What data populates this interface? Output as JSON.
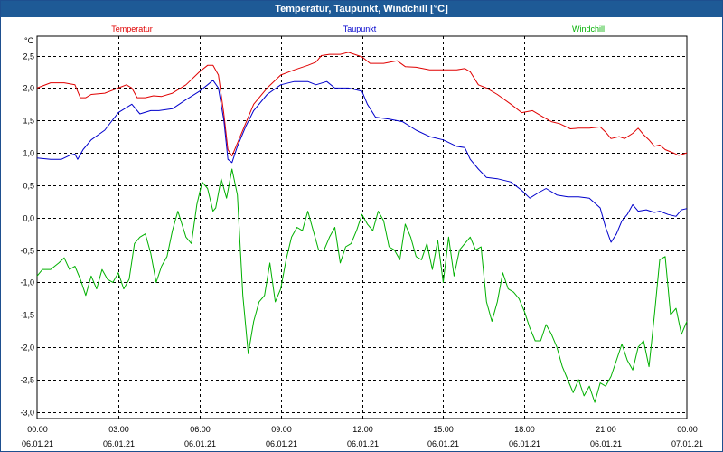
{
  "window": {
    "title": "Temperatur, Taupunkt, Windchill [°C]"
  },
  "chart_data": {
    "type": "line",
    "title": "Temperatur, Taupunkt, Windchill [°C]",
    "ylabel": "°C",
    "xlabel": "",
    "ylim": [
      -3.1,
      2.8
    ],
    "xlim": [
      0,
      24
    ],
    "grid": true,
    "legend_position": "top",
    "y_ticks": [
      "2,5",
      "2,0",
      "1,5",
      "1,0",
      "0,5",
      "0,0",
      "-0,5",
      "-1,0",
      "-1,5",
      "-2,0",
      "-2,5",
      "-3,0"
    ],
    "y_tick_values": [
      2.5,
      2.0,
      1.5,
      1.0,
      0.5,
      0.0,
      -0.5,
      -1.0,
      -1.5,
      -2.0,
      -2.5,
      -3.0
    ],
    "x_ticks": [
      {
        "time": "00:00",
        "date": "06.01.21",
        "hour": 0
      },
      {
        "time": "03:00",
        "date": "06.01.21",
        "hour": 3
      },
      {
        "time": "06:00",
        "date": "06.01.21",
        "hour": 6
      },
      {
        "time": "09:00",
        "date": "06.01.21",
        "hour": 9
      },
      {
        "time": "12:00",
        "date": "06.01.21",
        "hour": 12
      },
      {
        "time": "15:00",
        "date": "06.01.21",
        "hour": 15
      },
      {
        "time": "18:00",
        "date": "06.01.21",
        "hour": 18
      },
      {
        "time": "21:00",
        "date": "06.01.21",
        "hour": 21
      },
      {
        "time": "00:00",
        "date": "07.01.21",
        "hour": 24
      }
    ],
    "series": [
      {
        "name": "Temperatur",
        "color": "#e00000",
        "points": [
          [
            0,
            2.0
          ],
          [
            0.5,
            2.08
          ],
          [
            1.0,
            2.08
          ],
          [
            1.4,
            2.05
          ],
          [
            1.6,
            1.85
          ],
          [
            1.8,
            1.85
          ],
          [
            2.0,
            1.9
          ],
          [
            2.5,
            1.92
          ],
          [
            3.0,
            2.0
          ],
          [
            3.3,
            2.05
          ],
          [
            3.5,
            2.0
          ],
          [
            3.7,
            1.85
          ],
          [
            4.0,
            1.85
          ],
          [
            4.3,
            1.88
          ],
          [
            4.6,
            1.87
          ],
          [
            5.0,
            1.92
          ],
          [
            5.5,
            2.05
          ],
          [
            6.0,
            2.25
          ],
          [
            6.3,
            2.35
          ],
          [
            6.5,
            2.35
          ],
          [
            6.7,
            2.2
          ],
          [
            6.9,
            1.6
          ],
          [
            7.05,
            1.05
          ],
          [
            7.2,
            0.95
          ],
          [
            7.4,
            1.15
          ],
          [
            7.7,
            1.45
          ],
          [
            8.0,
            1.75
          ],
          [
            8.5,
            2.0
          ],
          [
            9.0,
            2.2
          ],
          [
            9.5,
            2.28
          ],
          [
            10.0,
            2.35
          ],
          [
            10.3,
            2.4
          ],
          [
            10.5,
            2.5
          ],
          [
            10.8,
            2.52
          ],
          [
            11.2,
            2.52
          ],
          [
            11.5,
            2.55
          ],
          [
            12.0,
            2.48
          ],
          [
            12.3,
            2.38
          ],
          [
            12.8,
            2.38
          ],
          [
            13.3,
            2.42
          ],
          [
            13.6,
            2.33
          ],
          [
            14.0,
            2.32
          ],
          [
            14.5,
            2.28
          ],
          [
            15.0,
            2.28
          ],
          [
            15.5,
            2.28
          ],
          [
            15.8,
            2.3
          ],
          [
            16.0,
            2.25
          ],
          [
            16.3,
            2.05
          ],
          [
            16.6,
            2.0
          ],
          [
            17.0,
            1.9
          ],
          [
            17.5,
            1.75
          ],
          [
            17.9,
            1.62
          ],
          [
            18.3,
            1.65
          ],
          [
            18.7,
            1.55
          ],
          [
            19.0,
            1.48
          ],
          [
            19.3,
            1.45
          ],
          [
            19.7,
            1.37
          ],
          [
            20.0,
            1.38
          ],
          [
            20.4,
            1.38
          ],
          [
            20.8,
            1.4
          ],
          [
            21.0,
            1.32
          ],
          [
            21.2,
            1.22
          ],
          [
            21.5,
            1.25
          ],
          [
            21.7,
            1.22
          ],
          [
            22.0,
            1.3
          ],
          [
            22.2,
            1.38
          ],
          [
            22.4,
            1.28
          ],
          [
            22.6,
            1.2
          ],
          [
            22.8,
            1.1
          ],
          [
            23.0,
            1.12
          ],
          [
            23.2,
            1.05
          ],
          [
            23.5,
            1.0
          ],
          [
            23.7,
            0.96
          ],
          [
            24.0,
            1.0
          ]
        ]
      },
      {
        "name": "Taupunkt",
        "color": "#0000cc",
        "points": [
          [
            0,
            0.92
          ],
          [
            0.5,
            0.9
          ],
          [
            0.9,
            0.9
          ],
          [
            1.2,
            0.96
          ],
          [
            1.4,
            0.98
          ],
          [
            1.5,
            0.9
          ],
          [
            1.7,
            1.05
          ],
          [
            2.0,
            1.2
          ],
          [
            2.5,
            1.35
          ],
          [
            3.0,
            1.62
          ],
          [
            3.5,
            1.75
          ],
          [
            3.8,
            1.6
          ],
          [
            4.2,
            1.65
          ],
          [
            4.5,
            1.65
          ],
          [
            5.0,
            1.68
          ],
          [
            5.5,
            1.82
          ],
          [
            6.0,
            1.95
          ],
          [
            6.3,
            2.05
          ],
          [
            6.5,
            2.12
          ],
          [
            6.7,
            2.0
          ],
          [
            6.9,
            1.5
          ],
          [
            7.05,
            0.9
          ],
          [
            7.2,
            0.85
          ],
          [
            7.4,
            1.1
          ],
          [
            7.7,
            1.4
          ],
          [
            8.0,
            1.65
          ],
          [
            8.5,
            1.9
          ],
          [
            9.0,
            2.05
          ],
          [
            9.5,
            2.1
          ],
          [
            10.0,
            2.1
          ],
          [
            10.3,
            2.05
          ],
          [
            10.7,
            2.1
          ],
          [
            11.0,
            2.0
          ],
          [
            11.5,
            2.0
          ],
          [
            12.0,
            1.95
          ],
          [
            12.2,
            1.75
          ],
          [
            12.5,
            1.55
          ],
          [
            13.0,
            1.52
          ],
          [
            13.5,
            1.48
          ],
          [
            14.0,
            1.35
          ],
          [
            14.5,
            1.25
          ],
          [
            15.0,
            1.2
          ],
          [
            15.5,
            1.1
          ],
          [
            15.8,
            1.08
          ],
          [
            16.0,
            0.9
          ],
          [
            16.3,
            0.75
          ],
          [
            16.6,
            0.62
          ],
          [
            17.0,
            0.6
          ],
          [
            17.5,
            0.55
          ],
          [
            17.9,
            0.42
          ],
          [
            18.2,
            0.3
          ],
          [
            18.5,
            0.38
          ],
          [
            18.8,
            0.45
          ],
          [
            19.2,
            0.35
          ],
          [
            19.6,
            0.32
          ],
          [
            20.0,
            0.32
          ],
          [
            20.4,
            0.3
          ],
          [
            20.8,
            0.15
          ],
          [
            21.0,
            -0.15
          ],
          [
            21.2,
            -0.38
          ],
          [
            21.4,
            -0.25
          ],
          [
            21.6,
            -0.05
          ],
          [
            21.8,
            0.05
          ],
          [
            22.0,
            0.2
          ],
          [
            22.2,
            0.1
          ],
          [
            22.5,
            0.12
          ],
          [
            22.8,
            0.08
          ],
          [
            23.0,
            0.1
          ],
          [
            23.3,
            0.05
          ],
          [
            23.6,
            0.02
          ],
          [
            23.8,
            0.12
          ],
          [
            24.0,
            0.14
          ]
        ]
      },
      {
        "name": "Windchill",
        "color": "#00b000",
        "points": [
          [
            0,
            -0.9
          ],
          [
            0.2,
            -0.8
          ],
          [
            0.5,
            -0.8
          ],
          [
            0.8,
            -0.7
          ],
          [
            1.0,
            -0.62
          ],
          [
            1.2,
            -0.8
          ],
          [
            1.4,
            -0.75
          ],
          [
            1.6,
            -0.95
          ],
          [
            1.8,
            -1.2
          ],
          [
            2.0,
            -0.9
          ],
          [
            2.2,
            -1.1
          ],
          [
            2.4,
            -0.8
          ],
          [
            2.6,
            -0.95
          ],
          [
            2.8,
            -1.0
          ],
          [
            3.0,
            -0.85
          ],
          [
            3.2,
            -1.1
          ],
          [
            3.4,
            -0.95
          ],
          [
            3.6,
            -0.4
          ],
          [
            3.8,
            -0.3
          ],
          [
            4.0,
            -0.25
          ],
          [
            4.2,
            -0.55
          ],
          [
            4.4,
            -1.0
          ],
          [
            4.6,
            -0.75
          ],
          [
            4.8,
            -0.6
          ],
          [
            5.0,
            -0.2
          ],
          [
            5.2,
            0.1
          ],
          [
            5.5,
            -0.3
          ],
          [
            5.7,
            -0.4
          ],
          [
            5.9,
            0.2
          ],
          [
            6.1,
            0.55
          ],
          [
            6.3,
            0.45
          ],
          [
            6.5,
            0.1
          ],
          [
            6.6,
            0.15
          ],
          [
            6.8,
            0.6
          ],
          [
            7.0,
            0.3
          ],
          [
            7.2,
            0.75
          ],
          [
            7.4,
            0.35
          ],
          [
            7.6,
            -1.2
          ],
          [
            7.8,
            -2.1
          ],
          [
            8.0,
            -1.6
          ],
          [
            8.2,
            -1.3
          ],
          [
            8.4,
            -1.2
          ],
          [
            8.6,
            -0.7
          ],
          [
            8.8,
            -1.3
          ],
          [
            9.0,
            -1.1
          ],
          [
            9.2,
            -0.65
          ],
          [
            9.4,
            -0.3
          ],
          [
            9.6,
            -0.15
          ],
          [
            9.8,
            -0.2
          ],
          [
            10.0,
            0.1
          ],
          [
            10.2,
            -0.2
          ],
          [
            10.4,
            -0.5
          ],
          [
            10.6,
            -0.5
          ],
          [
            10.8,
            -0.3
          ],
          [
            11.0,
            -0.15
          ],
          [
            11.2,
            -0.7
          ],
          [
            11.4,
            -0.45
          ],
          [
            11.6,
            -0.4
          ],
          [
            11.8,
            -0.2
          ],
          [
            12.0,
            0.05
          ],
          [
            12.2,
            -0.1
          ],
          [
            12.4,
            -0.2
          ],
          [
            12.6,
            0.1
          ],
          [
            12.8,
            -0.05
          ],
          [
            13.0,
            -0.45
          ],
          [
            13.2,
            -0.5
          ],
          [
            13.4,
            -0.65
          ],
          [
            13.6,
            -0.1
          ],
          [
            13.8,
            -0.3
          ],
          [
            14.0,
            -0.6
          ],
          [
            14.2,
            -0.65
          ],
          [
            14.4,
            -0.4
          ],
          [
            14.6,
            -0.8
          ],
          [
            14.8,
            -0.35
          ],
          [
            15.0,
            -1.0
          ],
          [
            15.2,
            -0.3
          ],
          [
            15.4,
            -0.9
          ],
          [
            15.6,
            -0.5
          ],
          [
            15.8,
            -0.4
          ],
          [
            16.0,
            -0.3
          ],
          [
            16.2,
            -0.5
          ],
          [
            16.4,
            -0.45
          ],
          [
            16.6,
            -1.3
          ],
          [
            16.8,
            -1.6
          ],
          [
            17.0,
            -1.3
          ],
          [
            17.2,
            -0.85
          ],
          [
            17.4,
            -1.1
          ],
          [
            17.6,
            -1.15
          ],
          [
            17.8,
            -1.25
          ],
          [
            18.0,
            -1.45
          ],
          [
            18.2,
            -1.7
          ],
          [
            18.4,
            -1.9
          ],
          [
            18.6,
            -1.9
          ],
          [
            18.8,
            -1.65
          ],
          [
            19.0,
            -1.8
          ],
          [
            19.2,
            -2.0
          ],
          [
            19.4,
            -2.3
          ],
          [
            19.6,
            -2.5
          ],
          [
            19.8,
            -2.7
          ],
          [
            20.0,
            -2.5
          ],
          [
            20.2,
            -2.75
          ],
          [
            20.4,
            -2.6
          ],
          [
            20.6,
            -2.85
          ],
          [
            20.8,
            -2.55
          ],
          [
            21.0,
            -2.6
          ],
          [
            21.2,
            -2.45
          ],
          [
            21.4,
            -2.2
          ],
          [
            21.6,
            -1.95
          ],
          [
            21.8,
            -2.2
          ],
          [
            22.0,
            -2.35
          ],
          [
            22.2,
            -2.0
          ],
          [
            22.4,
            -1.9
          ],
          [
            22.6,
            -2.3
          ],
          [
            22.8,
            -1.5
          ],
          [
            23.0,
            -0.65
          ],
          [
            23.2,
            -0.6
          ],
          [
            23.4,
            -1.5
          ],
          [
            23.6,
            -1.4
          ],
          [
            23.8,
            -1.8
          ],
          [
            24.0,
            -1.6
          ]
        ]
      }
    ]
  }
}
